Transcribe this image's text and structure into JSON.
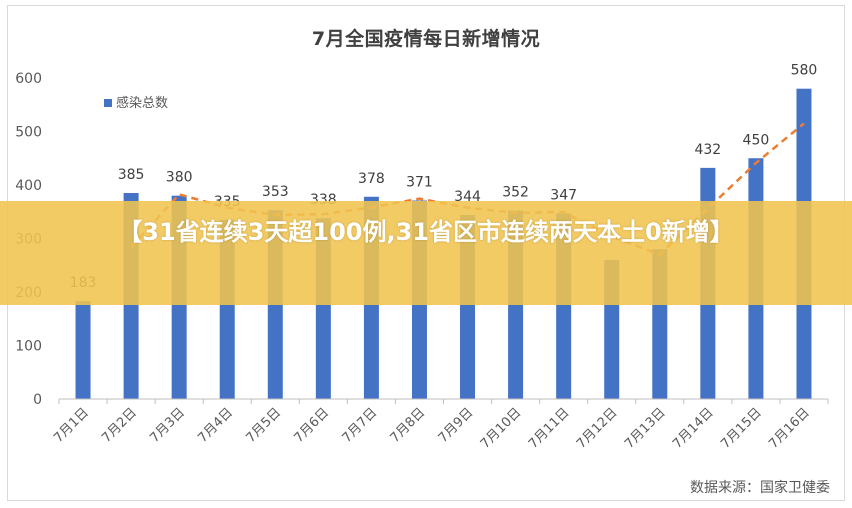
{
  "chart_data": {
    "type": "bar",
    "title": "7月全国疫情每日新增情况",
    "categories": [
      "7月1日",
      "7月2日",
      "7月3日",
      "7月4日",
      "7月5日",
      "7月6日",
      "7月7日",
      "7月8日",
      "7月9日",
      "7月10日",
      "7月11日",
      "7月12日",
      "7月13日",
      "7月14日",
      "7月15日",
      "7月16日"
    ],
    "series": [
      {
        "name": "感染总数",
        "color": "#4472c4",
        "values": [
          183,
          385,
          380,
          335,
          353,
          338,
          378,
          371,
          344,
          352,
          347,
          260,
          280,
          432,
          450,
          580
        ],
        "labels": [
          "183",
          "385",
          "380",
          "335",
          "353",
          "338",
          "378",
          "371",
          "344",
          "352",
          "347",
          "",
          "",
          "432",
          "450",
          "580"
        ]
      }
    ],
    "trendline": {
      "type": "moving-average",
      "color": "#ed7d31",
      "values": [
        null,
        284,
        382.5,
        357.5,
        344,
        345.5,
        358,
        374.5,
        357.5,
        348,
        349.5,
        303.5,
        270,
        356,
        441,
        515
      ]
    },
    "ylim": [
      0,
      600
    ],
    "yticks": [
      0,
      100,
      200,
      300,
      400,
      500,
      600
    ],
    "legend": {
      "position": "top-left",
      "entries": [
        "感染总数"
      ]
    },
    "grid": false
  },
  "banner": {
    "text": "【31省连续3天超100例,31省区市连续两天本土0新增】"
  },
  "source": "数据来源：国家卫健委"
}
